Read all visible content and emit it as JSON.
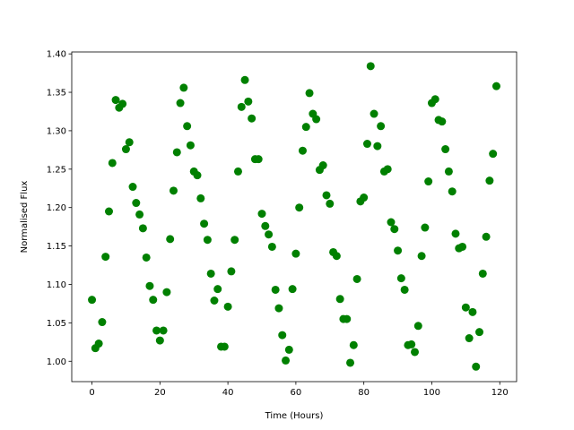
{
  "chart_data": {
    "type": "scatter",
    "x_label": "Time (Hours)",
    "y_label": "Normalised Flux",
    "color": "#008000",
    "x": [
      0,
      1,
      2,
      3,
      4,
      5,
      6,
      7,
      8,
      9,
      10,
      11,
      12,
      13,
      14,
      15,
      16,
      17,
      18,
      19,
      20,
      21,
      22,
      23,
      24,
      25,
      26,
      27,
      28,
      29,
      30,
      31,
      32,
      33,
      34,
      35,
      36,
      37,
      38,
      39,
      40,
      41,
      42,
      43,
      44,
      45,
      46,
      47,
      48,
      49,
      50,
      51,
      52,
      53,
      54,
      55,
      56,
      57,
      58,
      59,
      60,
      61,
      62,
      63,
      64,
      65,
      66,
      67,
      68,
      69,
      70,
      71,
      72,
      73,
      74,
      75,
      76,
      77,
      78,
      79,
      80,
      81,
      82,
      83,
      84,
      85,
      86,
      87,
      88,
      89,
      90,
      91,
      92,
      93,
      94,
      95,
      96,
      97,
      98,
      99,
      100,
      101,
      102,
      103,
      104,
      105,
      106,
      107,
      108,
      109,
      110,
      111,
      112,
      113,
      114,
      115,
      116,
      117,
      118,
      119
    ],
    "values": [
      1.08,
      1.017,
      1.023,
      1.051,
      1.136,
      1.195,
      1.258,
      1.34,
      1.33,
      1.335,
      1.276,
      1.285,
      1.227,
      1.206,
      1.191,
      1.173,
      1.135,
      1.098,
      1.08,
      1.04,
      1.027,
      1.04,
      1.09,
      1.159,
      1.222,
      1.272,
      1.336,
      1.356,
      1.306,
      1.281,
      1.247,
      1.242,
      1.212,
      1.179,
      1.158,
      1.114,
      1.079,
      1.094,
      1.019,
      1.019,
      1.071,
      1.117,
      1.158,
      1.247,
      1.331,
      1.366,
      1.338,
      1.316,
      1.263,
      1.263,
      1.192,
      1.176,
      1.165,
      1.149,
      1.093,
      1.069,
      1.034,
      1.001,
      1.015,
      1.094,
      1.14,
      1.2,
      1.274,
      1.305,
      1.349,
      1.322,
      1.315,
      1.249,
      1.255,
      1.216,
      1.205,
      1.142,
      1.137,
      1.081,
      1.055,
      1.055,
      0.998,
      1.021,
      1.107,
      1.208,
      1.213,
      1.283,
      1.384,
      1.322,
      1.28,
      1.306,
      1.247,
      1.25,
      1.181,
      1.172,
      1.144,
      1.108,
      1.093,
      1.021,
      1.022,
      1.012,
      1.046,
      1.137,
      1.174,
      1.234,
      1.336,
      1.341,
      1.314,
      1.312,
      1.276,
      1.247,
      1.221,
      1.166,
      1.147,
      1.149,
      1.07,
      1.03,
      1.064,
      0.993,
      1.038,
      1.114,
      1.162,
      1.235,
      1.27,
      1.358
    ],
    "xlim": [
      -5.95,
      124.95
    ],
    "xticks": [
      0,
      20,
      40,
      60,
      80,
      100,
      120
    ],
    "ylim": [
      0.9735,
      1.4025
    ],
    "yticks": [
      {
        "value": 1.0,
        "label": "1.00"
      },
      1.05,
      {
        "value": 1.1,
        "label": "1.10"
      },
      1.15,
      {
        "value": 1.2,
        "label": "1.20"
      },
      1.25,
      {
        "value": 1.3,
        "label": "1.30"
      },
      1.35,
      {
        "value": 1.4,
        "label": "1.40"
      }
    ]
  }
}
